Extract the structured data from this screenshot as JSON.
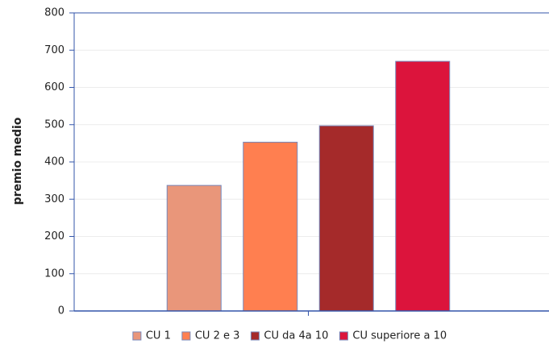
{
  "chart_data": {
    "type": "bar",
    "y_label": "premio medio",
    "categories": [
      null
    ],
    "series": [
      {
        "name": "CU 1",
        "color": "#e9967a",
        "values": [
          337
        ]
      },
      {
        "name": "CU 2 e 3",
        "color": "#ff7f50",
        "values": [
          453
        ]
      },
      {
        "name": "CU da 4a 10",
        "color": "#a52a2a",
        "values": [
          497
        ]
      },
      {
        "name": "CU superiore a 10",
        "color": "#dc143c",
        "values": [
          670
        ]
      }
    ],
    "ylim": [
      0,
      800
    ],
    "yticks": [
      0,
      100,
      200,
      300,
      400,
      500,
      600,
      700,
      800
    ],
    "grid": true,
    "legend": "bottom"
  }
}
